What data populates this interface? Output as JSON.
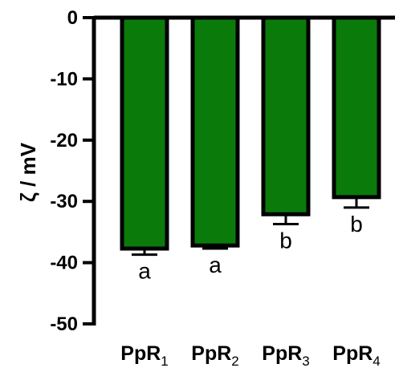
{
  "chart_data": {
    "type": "bar",
    "categories": [
      {
        "base": "PpR",
        "sub": "1"
      },
      {
        "base": "PpR",
        "sub": "2"
      },
      {
        "base": "PpR",
        "sub": "3"
      },
      {
        "base": "PpR",
        "sub": "4"
      }
    ],
    "values": [
      -37.7,
      -37.2,
      -32.1,
      -29.3
    ],
    "errors": [
      1.0,
      0.5,
      1.6,
      1.7
    ],
    "significance": [
      "a",
      "a",
      "b",
      "b"
    ],
    "ylabel": "ζ / mV",
    "xlabel": "",
    "title": "",
    "ylim": [
      -50,
      0
    ],
    "yticks": [
      0,
      -10,
      -20,
      -30,
      -40,
      -50
    ],
    "bar_color": "#0a7a0a",
    "edge_color": "#000000",
    "grid": false,
    "legend": "none"
  }
}
